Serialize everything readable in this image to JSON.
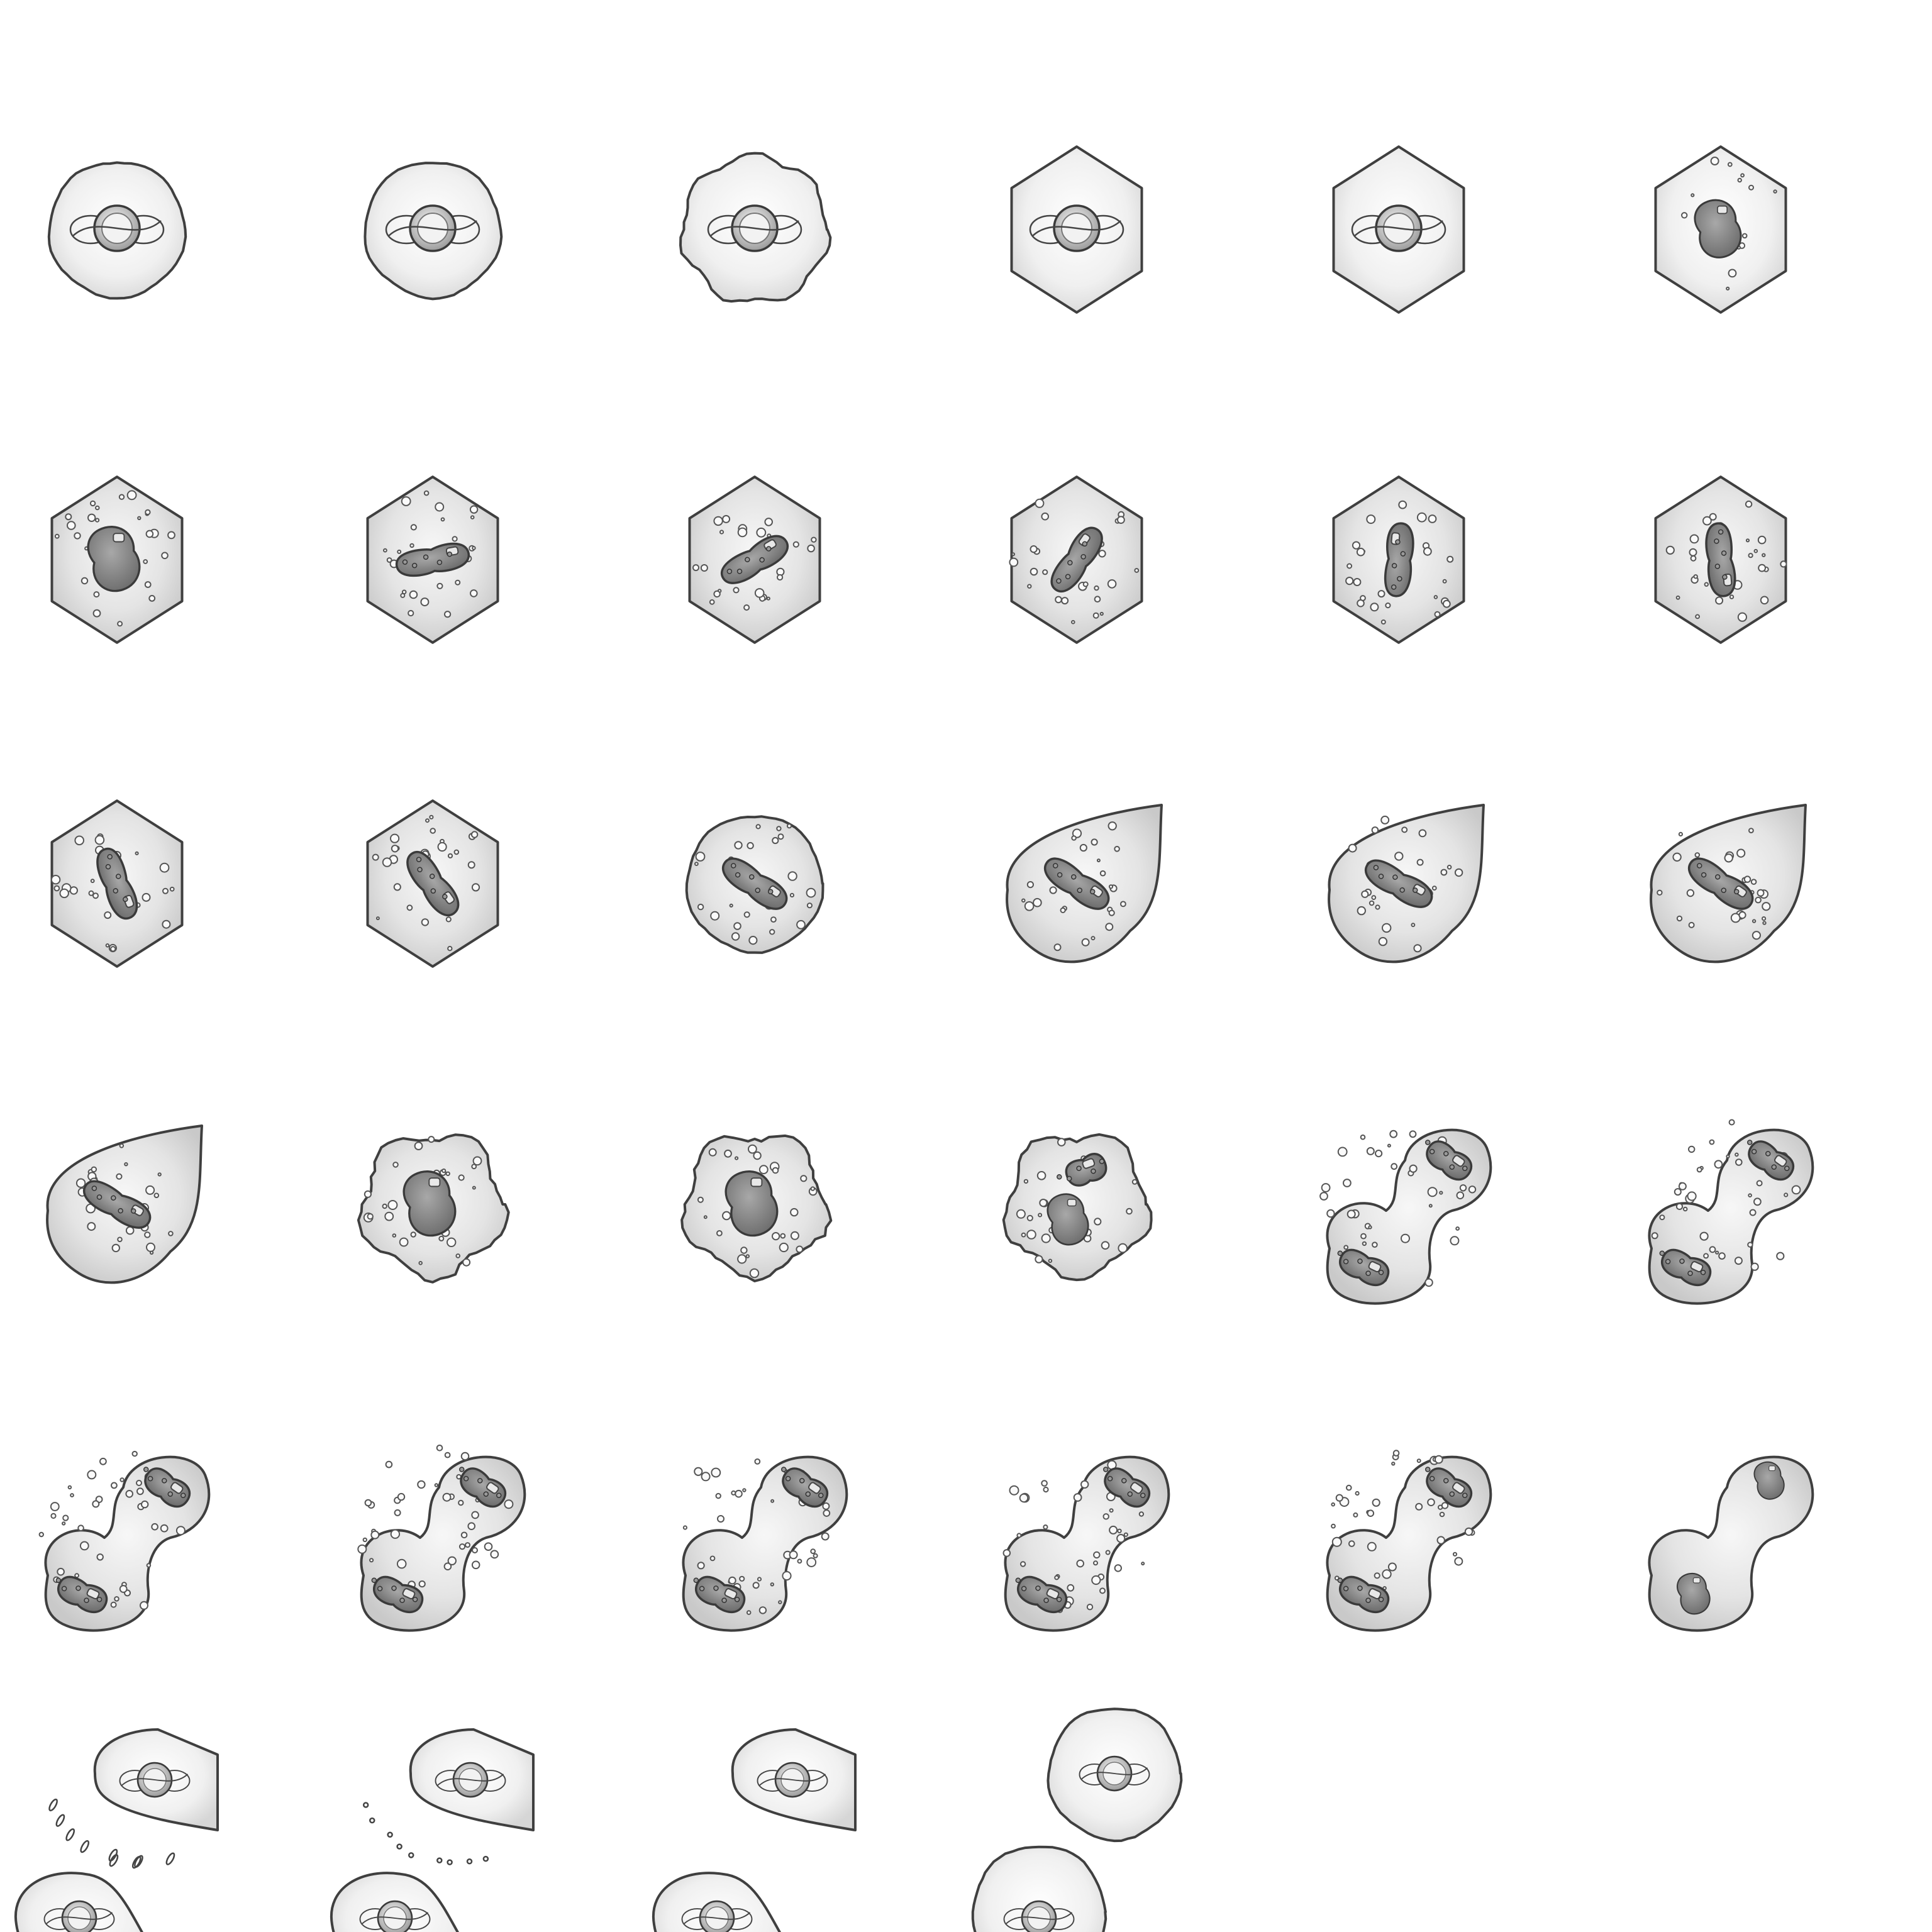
{
  "sheet": {
    "rows": 6,
    "columns": 6,
    "frame_count": 34,
    "colors": {
      "background": "#ffffff",
      "outline": "#3f3f3f",
      "membrane_light": "#f4f4f4",
      "membrane_mid": "#dcdcdc",
      "membrane_dark": "#c2c2c2",
      "nucleus_light": "#9a9a9a",
      "nucleus_dark": "#6e6e6e"
    },
    "frames": [
      {
        "row": 0,
        "col": 0,
        "stage": "interphase",
        "shape": "round",
        "cells": 1,
        "nucleus": "ring"
      },
      {
        "row": 0,
        "col": 1,
        "stage": "interphase",
        "shape": "round",
        "cells": 1,
        "nucleus": "ring"
      },
      {
        "row": 0,
        "col": 2,
        "stage": "interphase",
        "shape": "wavy",
        "cells": 1,
        "nucleus": "ring"
      },
      {
        "row": 0,
        "col": 3,
        "stage": "interphase",
        "shape": "hexagon",
        "cells": 1,
        "nucleus": "ring"
      },
      {
        "row": 0,
        "col": 4,
        "stage": "interphase",
        "shape": "hexagon",
        "cells": 1,
        "nucleus": "ring"
      },
      {
        "row": 0,
        "col": 5,
        "stage": "prophase",
        "shape": "hexagon",
        "cells": 1,
        "nucleus": "blob"
      },
      {
        "row": 1,
        "col": 0,
        "stage": "prophase",
        "shape": "hexagon",
        "cells": 1,
        "nucleus": "blob"
      },
      {
        "row": 1,
        "col": 1,
        "stage": "prometaphase",
        "shape": "hexagon",
        "cells": 1,
        "nucleus": "bar",
        "angle": -10
      },
      {
        "row": 1,
        "col": 2,
        "stage": "prometaphase",
        "shape": "hexagon",
        "cells": 1,
        "nucleus": "bar",
        "angle": -30
      },
      {
        "row": 1,
        "col": 3,
        "stage": "metaphase",
        "shape": "hexagon",
        "cells": 1,
        "nucleus": "bar",
        "angle": -55
      },
      {
        "row": 1,
        "col": 4,
        "stage": "metaphase",
        "shape": "hexagon",
        "cells": 1,
        "nucleus": "bar",
        "angle": -85
      },
      {
        "row": 1,
        "col": 5,
        "stage": "metaphase",
        "shape": "hexagon",
        "cells": 1,
        "nucleus": "bar",
        "angle": 85
      },
      {
        "row": 2,
        "col": 0,
        "stage": "metaphase",
        "shape": "hexagon",
        "cells": 1,
        "nucleus": "bar",
        "angle": 70
      },
      {
        "row": 2,
        "col": 1,
        "stage": "metaphase",
        "shape": "hexagon",
        "cells": 1,
        "nucleus": "bar",
        "angle": 55
      },
      {
        "row": 2,
        "col": 2,
        "stage": "metaphase",
        "shape": "round",
        "cells": 1,
        "nucleus": "bar",
        "angle": 35
      },
      {
        "row": 2,
        "col": 3,
        "stage": "metaphase",
        "shape": "teardrop",
        "cells": 1,
        "nucleus": "bar",
        "angle": 35
      },
      {
        "row": 2,
        "col": 4,
        "stage": "anaphase",
        "shape": "teardrop",
        "cells": 1,
        "nucleus": "bar",
        "angle": 30
      },
      {
        "row": 2,
        "col": 5,
        "stage": "anaphase",
        "shape": "teardrop",
        "cells": 1,
        "nucleus": "bar",
        "angle": 35
      },
      {
        "row": 3,
        "col": 0,
        "stage": "anaphase",
        "shape": "teardrop",
        "cells": 1,
        "nucleus": "bar",
        "angle": 30
      },
      {
        "row": 3,
        "col": 1,
        "stage": "anaphase",
        "shape": "lumpy",
        "cells": 1,
        "nucleus": "blob"
      },
      {
        "row": 3,
        "col": 2,
        "stage": "anaphase",
        "shape": "lumpy",
        "cells": 1,
        "nucleus": "blob"
      },
      {
        "row": 3,
        "col": 3,
        "stage": "anaphase",
        "shape": "lumpy",
        "cells": 1,
        "nucleus": "split"
      },
      {
        "row": 3,
        "col": 4,
        "stage": "telophase",
        "shape": "dumbbell",
        "cells": 2,
        "nucleus": "pair"
      },
      {
        "row": 3,
        "col": 5,
        "stage": "telophase",
        "shape": "dumbbell",
        "cells": 2,
        "nucleus": "pair"
      },
      {
        "row": 4,
        "col": 0,
        "stage": "telophase",
        "shape": "dumbbell",
        "cells": 2,
        "nucleus": "pair"
      },
      {
        "row": 4,
        "col": 1,
        "stage": "telophase",
        "shape": "dumbbell",
        "cells": 2,
        "nucleus": "pair"
      },
      {
        "row": 4,
        "col": 2,
        "stage": "cytokinesis",
        "shape": "dumbbell",
        "cells": 2,
        "nucleus": "pair"
      },
      {
        "row": 4,
        "col": 3,
        "stage": "cytokinesis",
        "shape": "dumbbell",
        "cells": 2,
        "nucleus": "pair"
      },
      {
        "row": 4,
        "col": 4,
        "stage": "cytokinesis",
        "shape": "dumbbell",
        "cells": 2,
        "nucleus": "pair"
      },
      {
        "row": 4,
        "col": 5,
        "stage": "cytokinesis",
        "shape": "dumbbell",
        "cells": 2,
        "nucleus": "blob-pair"
      },
      {
        "row": 5,
        "col": 0,
        "stage": "separation",
        "shape": "split",
        "cells": 2,
        "nucleus": "ring-pair",
        "debris": "streaks"
      },
      {
        "row": 5,
        "col": 1,
        "stage": "separation",
        "shape": "split",
        "cells": 2,
        "nucleus": "ring-pair",
        "debris": "dots"
      },
      {
        "row": 5,
        "col": 2,
        "stage": "daughter-cells",
        "shape": "split",
        "cells": 2,
        "nucleus": "ring-pair"
      },
      {
        "row": 5,
        "col": 3,
        "stage": "daughter-cells",
        "shape": "round-pair",
        "cells": 2,
        "nucleus": "ring-pair"
      }
    ]
  }
}
